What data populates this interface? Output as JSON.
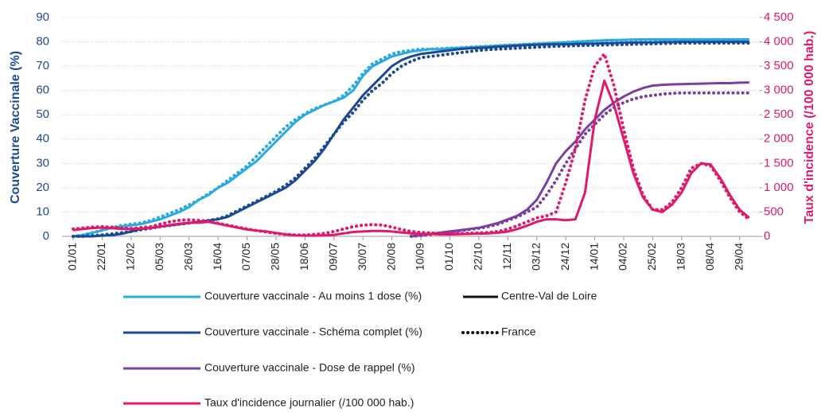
{
  "chart_data": {
    "type": "line",
    "y_label": "Couverture Vaccinale (%)",
    "y2_label": "Taux d'incidence (/100 000 hab.)",
    "ylim": [
      0,
      90
    ],
    "yticks": [
      0,
      10,
      20,
      30,
      40,
      50,
      60,
      70,
      80,
      90
    ],
    "y2lim": [
      0,
      4500
    ],
    "y2ticks": [
      0,
      500,
      {
        "value": 1000,
        "label": "1 000"
      },
      {
        "value": 1500,
        "label": "1 500"
      },
      {
        "value": 2000,
        "label": "2 000"
      },
      {
        "value": 2500,
        "label": "2 500"
      },
      {
        "value": 3000,
        "label": "3 000"
      },
      {
        "value": 3500,
        "label": "3 500"
      },
      {
        "value": 4000,
        "label": "4 000"
      },
      {
        "value": 4500,
        "label": "4 500"
      }
    ],
    "grid": true,
    "categories": [
      "01/01",
      null,
      null,
      "22/01",
      null,
      null,
      "12/02",
      null,
      null,
      "05/03",
      null,
      null,
      "26/03",
      null,
      null,
      "16/04",
      null,
      null,
      "07/05",
      null,
      null,
      "28/05",
      null,
      null,
      "18/06",
      null,
      null,
      "09/07",
      null,
      null,
      "30/07",
      null,
      null,
      "20/08",
      null,
      null,
      "10/09",
      null,
      null,
      "01/10",
      null,
      null,
      "22/10",
      null,
      null,
      "12/11",
      null,
      null,
      "03/12",
      null,
      null,
      "24/12",
      null,
      null,
      "14/01",
      null,
      null,
      "04/02",
      null,
      null,
      "25/02",
      null,
      null,
      "18/03",
      null,
      null,
      "08/04",
      null,
      null,
      "29/04",
      null
    ],
    "regions": [
      {
        "name": "Centre-Val de Loire",
        "dash": "solid"
      },
      {
        "name": "France",
        "dash": "dotted"
      }
    ],
    "measures": [
      {
        "name": "Couverture vaccinale - Au moins 1 dose (%)",
        "color": "#29abe2",
        "axis": "y",
        "values": [
          [
            0,
            0.5,
            1.5,
            2.5,
            3.5,
            4,
            4.5,
            5,
            6,
            7,
            8.5,
            10,
            12,
            15,
            17,
            20,
            22,
            25,
            28,
            31,
            35,
            39,
            43,
            47,
            50,
            52,
            54,
            55.5,
            57,
            60,
            66,
            70,
            72,
            74,
            75,
            76,
            76.5,
            77,
            77,
            77.3,
            77.5,
            77.7,
            78,
            78.2,
            78.4,
            78.6,
            78.8,
            79,
            79.2,
            79.4,
            79.6,
            79.8,
            80,
            80.2,
            80.4,
            80.6,
            80.7,
            80.8,
            80.9,
            81,
            81,
            81,
            81,
            81,
            81,
            81,
            81,
            81,
            81,
            81,
            81
          ],
          [
            0,
            0.5,
            1.5,
            2.5,
            3.5,
            4.5,
            5,
            5.5,
            6.5,
            8,
            9.5,
            11,
            13,
            15,
            17.5,
            20,
            23,
            26,
            29,
            33,
            37,
            41,
            45,
            48,
            50.5,
            52.5,
            54,
            55.5,
            58,
            62,
            67,
            71,
            73,
            75,
            76,
            76.5,
            77,
            77,
            77.2,
            77.4,
            77.6,
            77.8,
            78,
            78.2,
            78.4,
            78.6,
            78.8,
            79,
            79.2,
            79.4,
            79.6,
            79.8,
            80,
            80.2,
            80.4,
            80.5,
            80.6,
            80.7,
            80.8,
            80.9,
            80.9,
            80.9,
            80.9,
            80.9,
            80.9,
            80.9,
            80.9,
            80.9,
            80.9,
            80.9,
            80.9
          ]
        ]
      },
      {
        "name": "Couverture vaccinale - Schéma complet (%)",
        "color": "#1b4a93",
        "axis": "y",
        "values": [
          [
            0,
            0,
            0,
            0.3,
            0.5,
            1,
            2,
            3,
            3.5,
            4,
            4.5,
            5,
            5.5,
            6,
            6.5,
            7,
            8,
            10,
            12,
            14,
            16,
            18,
            20,
            23,
            27,
            31,
            36,
            42,
            48,
            53,
            58,
            62,
            66,
            70,
            72.5,
            74,
            75,
            75.5,
            76,
            76.5,
            77,
            77.3,
            77.5,
            77.7,
            78,
            78.2,
            78.4,
            78.6,
            78.8,
            78.9,
            79,
            79,
            79.1,
            79.2,
            79.3,
            79.4,
            79.5,
            79.6,
            79.7,
            79.8,
            79.8,
            79.9,
            79.9,
            80,
            80,
            80,
            80,
            80,
            80,
            80,
            80
          ],
          [
            0,
            0,
            0.3,
            0.6,
            1,
            1.5,
            2,
            2.7,
            3.3,
            4,
            4.5,
            5,
            5.5,
            6,
            6.5,
            7.2,
            8.5,
            10.5,
            12.5,
            14.5,
            16.5,
            18.5,
            21,
            24,
            28,
            32,
            37,
            42,
            47,
            51,
            56,
            60,
            63,
            67,
            70,
            72,
            73.5,
            74,
            74.5,
            75,
            75.5,
            76,
            76.5,
            76.8,
            77,
            77.2,
            77.4,
            77.6,
            77.8,
            78,
            78.2,
            78.3,
            78.4,
            78.5,
            78.6,
            78.7,
            78.8,
            78.9,
            79,
            79.1,
            79.2,
            79.3,
            79.4,
            79.5,
            79.5,
            79.5,
            79.5,
            79.5,
            79.5,
            79.5,
            79.5
          ]
        ]
      },
      {
        "name": "Couverture vaccinale - Dose de rappel (%)",
        "color": "#7a3fa3",
        "axis": "y",
        "values": [
          [
            null,
            null,
            null,
            null,
            null,
            null,
            null,
            null,
            null,
            null,
            null,
            null,
            null,
            null,
            null,
            null,
            null,
            null,
            null,
            null,
            null,
            null,
            null,
            null,
            null,
            null,
            null,
            null,
            null,
            null,
            null,
            null,
            null,
            null,
            null,
            0,
            0.5,
            1,
            1.5,
            2,
            2.5,
            3,
            3.5,
            4.5,
            5.5,
            7,
            8.5,
            11,
            15,
            22,
            30,
            35,
            39,
            44,
            48,
            52,
            55,
            57.5,
            59.5,
            61,
            62,
            62.3,
            62.5,
            62.6,
            62.7,
            62.8,
            62.9,
            63,
            63,
            63.2,
            63.3
          ],
          [
            null,
            null,
            null,
            null,
            null,
            null,
            null,
            null,
            null,
            null,
            null,
            null,
            null,
            null,
            null,
            null,
            null,
            null,
            null,
            null,
            null,
            null,
            null,
            null,
            null,
            null,
            null,
            null,
            null,
            null,
            null,
            null,
            null,
            null,
            null,
            0,
            0.3,
            0.8,
            1.3,
            1.8,
            2.3,
            2.8,
            3.3,
            4,
            5,
            6.5,
            8,
            10,
            12,
            17,
            23,
            30,
            36,
            42,
            46,
            50,
            53,
            55,
            56.5,
            57.5,
            58,
            58.5,
            58.8,
            59,
            59,
            59,
            59,
            59,
            59,
            59,
            59
          ]
        ]
      },
      {
        "name": "Taux d'incidence journalier (/100 000 hab.)",
        "color": "#e0196b",
        "axis": "y2",
        "values": [
          [
            130,
            150,
            170,
            180,
            170,
            150,
            150,
            160,
            170,
            200,
            230,
            260,
            280,
            280,
            300,
            260,
            220,
            180,
            140,
            120,
            100,
            70,
            40,
            20,
            15,
            15,
            20,
            30,
            60,
            90,
            100,
            110,
            110,
            100,
            80,
            60,
            50,
            50,
            40,
            40,
            45,
            50,
            55,
            60,
            75,
            100,
            150,
            220,
            300,
            350,
            350,
            330,
            350,
            900,
            2400,
            3200,
            2700,
            2000,
            1300,
            800,
            550,
            500,
            650,
            900,
            1300,
            1500,
            1480,
            1200,
            850,
            550,
            380
          ],
          [
            150,
            170,
            190,
            200,
            190,
            170,
            160,
            180,
            200,
            250,
            300,
            330,
            340,
            330,
            310,
            270,
            230,
            190,
            150,
            120,
            90,
            60,
            40,
            30,
            30,
            40,
            60,
            100,
            150,
            200,
            230,
            240,
            230,
            190,
            140,
            100,
            80,
            70,
            60,
            60,
            60,
            65,
            70,
            80,
            100,
            150,
            220,
            300,
            380,
            420,
            500,
            1100,
            1800,
            2800,
            3500,
            3750,
            3100,
            2200,
            1400,
            850,
            550,
            550,
            700,
            1000,
            1400,
            1500,
            1450,
            1150,
            800,
            500,
            350
          ]
        ]
      }
    ]
  }
}
